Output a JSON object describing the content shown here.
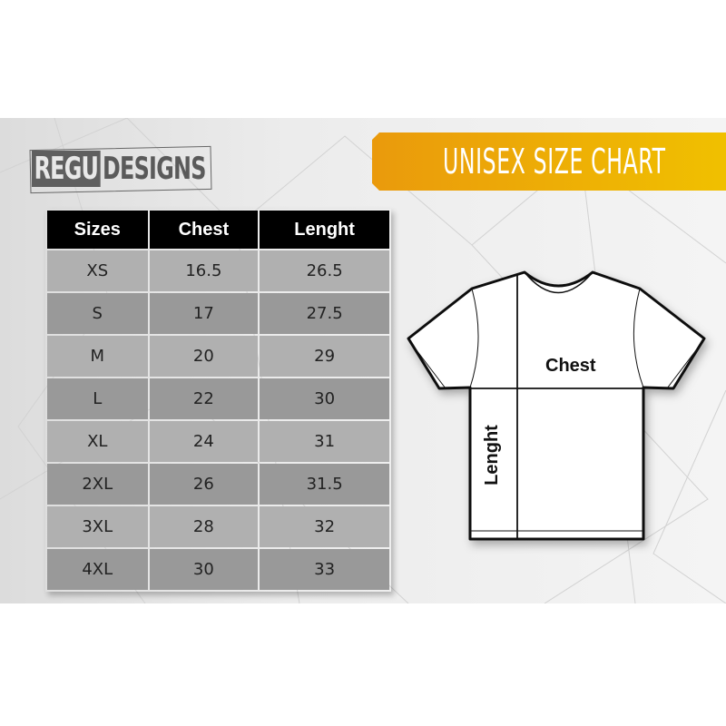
{
  "logo": {
    "part1": "REGU",
    "part2": "DESIGNS"
  },
  "banner": {
    "title": "UNISEX SIZE CHART",
    "color_start": "#ea9a0c",
    "color_end": "#f0c000"
  },
  "table": {
    "headers": [
      "Sizes",
      "Chest",
      "Lenght"
    ],
    "rows": [
      [
        "XS",
        "16.5",
        "26.5"
      ],
      [
        "S",
        "17",
        "27.5"
      ],
      [
        "M",
        "20",
        "29"
      ],
      [
        "L",
        "22",
        "30"
      ],
      [
        "XL",
        "24",
        "31"
      ],
      [
        "2XL",
        "26",
        "31.5"
      ],
      [
        "3XL",
        "28",
        "32"
      ],
      [
        "4XL",
        "30",
        "33"
      ]
    ]
  },
  "diagram": {
    "chest_label": "Chest",
    "length_label": "Lenght"
  }
}
